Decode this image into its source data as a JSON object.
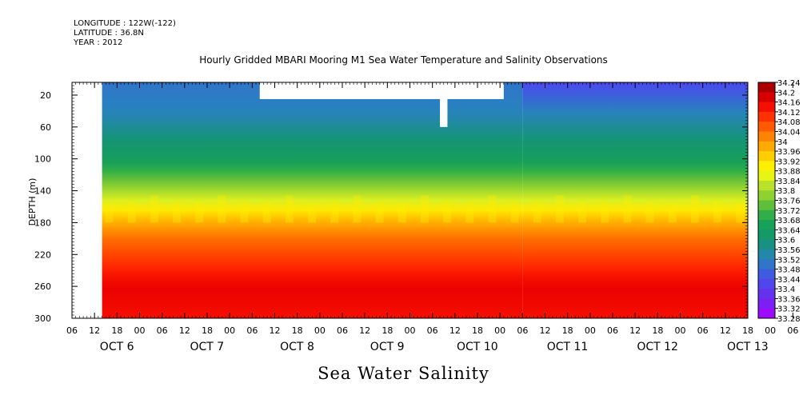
{
  "header": {
    "longitude": "LONGITUDE : 122W(-122)",
    "latitude": "LATITUDE : 36.8N",
    "year": "YEAR : 2012"
  },
  "chart_title": "Hourly Gridded MBARI Mooring M1 Sea Water Temperature and Salinity Observations",
  "variable_title": "Sea Water Salinity",
  "chart_data": {
    "type": "heatmap",
    "ylabel": "DEPTH (m)",
    "xlabel": "",
    "y_reversed": true,
    "ylim": [
      300,
      4
    ],
    "y_ticks": [
      20,
      60,
      100,
      140,
      180,
      220,
      260,
      300
    ],
    "x_hour_ticks": [
      "06",
      "12",
      "18",
      "00",
      "06",
      "12",
      "18",
      "00",
      "06",
      "12",
      "18",
      "00",
      "06",
      "12",
      "18",
      "00",
      "06",
      "12",
      "18",
      "00",
      "06",
      "12",
      "18",
      "00",
      "06",
      "12",
      "18",
      "00",
      "06",
      "12",
      "18",
      "00",
      "06"
    ],
    "x_day_labels": [
      "OCT  6",
      "OCT  7",
      "OCT  8",
      "OCT  9",
      "OCT 10",
      "OCT 11",
      "OCT 12",
      "OCT 13"
    ],
    "x_day_label_hours": [
      6,
      30,
      54,
      78,
      102,
      126,
      150,
      174
    ],
    "x_range_hours": [
      0,
      180
    ],
    "data_start_hour": 8,
    "colorbar": {
      "levels": [
        "34.24",
        "34.2",
        "34.16",
        "34.12",
        "34.08",
        "34.04",
        "34",
        "33.96",
        "33.92",
        "33.88",
        "33.84",
        "33.8",
        "33.76",
        "33.72",
        "33.68",
        "33.64",
        "33.6",
        "33.56",
        "33.52",
        "33.48",
        "33.44",
        "33.4",
        "33.36",
        "33.32",
        "33.28"
      ],
      "range": [
        33.28,
        34.24
      ]
    },
    "depth_profile": [
      {
        "depth": 4,
        "salinity": 33.5
      },
      {
        "depth": 40,
        "salinity": 33.52
      },
      {
        "depth": 70,
        "salinity": 33.58
      },
      {
        "depth": 100,
        "salinity": 33.64
      },
      {
        "depth": 130,
        "salinity": 33.76
      },
      {
        "depth": 155,
        "salinity": 33.86
      },
      {
        "depth": 175,
        "salinity": 33.96
      },
      {
        "depth": 200,
        "salinity": 34.04
      },
      {
        "depth": 230,
        "salinity": 34.1
      },
      {
        "depth": 260,
        "salinity": 34.16
      },
      {
        "depth": 300,
        "salinity": 34.14
      }
    ],
    "surface_fresh_start_hour": 120,
    "surface_fresh_salinity": 33.42,
    "missing_regions": [
      {
        "hour_start": 0,
        "hour_end": 8,
        "depth_start": 4,
        "depth_end": 300
      },
      {
        "hour_start": 50,
        "hour_end": 115,
        "depth_start": 4,
        "depth_end": 25
      },
      {
        "hour_start": 98,
        "hour_end": 100,
        "depth_start": 4,
        "depth_end": 60
      }
    ]
  }
}
